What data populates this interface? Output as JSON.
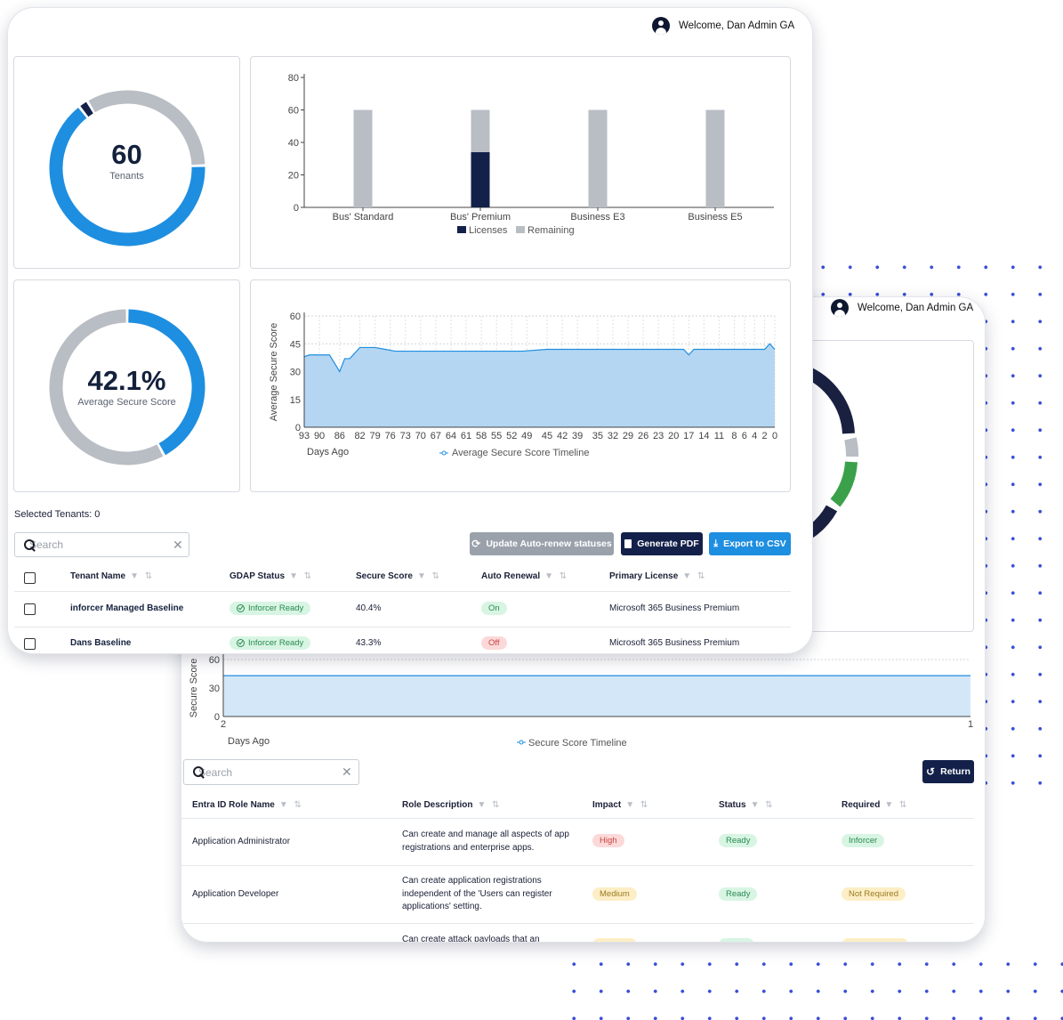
{
  "welcome_text": "Welcome, Dan Admin GA",
  "front": {
    "tenants": {
      "value": "60",
      "label": "Tenants"
    },
    "licenses_chart": {
      "categories": [
        "Bus' Standard",
        "Bus' Premium",
        "Business E3",
        "Business E5"
      ],
      "legend": [
        "Licenses",
        "Remaining"
      ]
    },
    "secure_score": {
      "value": "42.1%",
      "label": "Average Secure Score"
    },
    "timeline_chart": {
      "ylabel": "Average Secure Score",
      "xlabel": "Days Ago",
      "legend": "Average Secure Score Timeline"
    },
    "selected_tenants": "Selected Tenants: 0",
    "search_placeholder": "Search",
    "buttons": {
      "update": "Update Auto-renew statuses",
      "pdf": "Generate PDF",
      "csv": "Export to CSV"
    },
    "columns": [
      "Tenant Name",
      "GDAP Status",
      "Secure Score",
      "Auto Renewal",
      "Primary License"
    ],
    "rows": [
      {
        "name": "inforcer Managed Baseline",
        "gdap": "Inforcer Ready",
        "score": "40.4%",
        "renewal": "On",
        "license": "Microsoft 365 Business Premium"
      },
      {
        "name": "Dans Baseline",
        "gdap": "Inforcer Ready",
        "score": "43.3%",
        "renewal": "Off",
        "license": "Microsoft 365 Business Premium"
      }
    ]
  },
  "back": {
    "timeline_chart": {
      "ylabel": "Secure Score",
      "xlabel": "Days Ago",
      "legend": "Secure Score Timeline"
    },
    "search_placeholder": "Search",
    "return_button": "Return",
    "columns": [
      "Entra ID Role Name",
      "Role Description",
      "Impact",
      "Status",
      "Required"
    ],
    "rows": [
      {
        "role": "Application Administrator",
        "description": "Can create and manage all aspects of app registrations and enterprise apps.",
        "impact": "High",
        "status": "Ready",
        "required": "Inforcer"
      },
      {
        "role": "Application Developer",
        "description": "Can create application registrations independent of the 'Users can register applications' setting.",
        "impact": "Medium",
        "status": "Ready",
        "required": "Not Required"
      },
      {
        "role": "",
        "description": "Can create attack payloads that an",
        "impact": "",
        "status": "",
        "required": ""
      }
    ]
  },
  "chart_data": [
    {
      "type": "bar",
      "stacked": true,
      "categories": [
        "Bus' Standard",
        "Bus' Premium",
        "Business E3",
        "Business E5"
      ],
      "series": [
        {
          "name": "Licenses",
          "values": [
            0,
            34,
            0,
            0
          ],
          "color": "#13214a"
        },
        {
          "name": "Remaining",
          "values": [
            60,
            26,
            60,
            60
          ],
          "color": "#b9bdc4"
        }
      ],
      "ylim": [
        0,
        80
      ],
      "yticks": [
        0,
        20,
        40,
        60,
        80
      ],
      "legend": "bottom"
    },
    {
      "type": "area",
      "title": "",
      "xlabel": "Days Ago",
      "ylabel": "Average Secure Score",
      "ylim": [
        0,
        60
      ],
      "yticks": [
        0,
        15,
        30,
        45,
        60
      ],
      "xticks": [
        "93",
        "90",
        "86",
        "82",
        "79",
        "76",
        "73",
        "70",
        "67",
        "64",
        "61",
        "58",
        "55",
        "52",
        "49",
        "45",
        "42",
        "39",
        "35",
        "32",
        "29",
        "26",
        "23",
        "20",
        "17",
        "14",
        "11",
        "8",
        "6",
        "4",
        "2",
        "0"
      ],
      "series": [
        {
          "name": "Average Secure Score Timeline",
          "x": [
            93,
            92,
            90,
            88,
            86,
            85,
            84,
            82,
            81,
            79,
            77,
            75,
            73,
            70,
            65,
            60,
            55,
            50,
            45,
            40,
            35,
            30,
            25,
            20,
            18,
            17,
            16,
            14,
            10,
            5,
            2,
            1,
            0
          ],
          "y": [
            38,
            39,
            39,
            39,
            30,
            37,
            37,
            43,
            43,
            43,
            42,
            41,
            41,
            41,
            41,
            41,
            41,
            41,
            42,
            42,
            42,
            42,
            42,
            42,
            42,
            39,
            42,
            42,
            42,
            42,
            42,
            45,
            42
          ],
          "color": "#1e8ee0"
        }
      ],
      "legend": "bottom"
    },
    {
      "type": "area",
      "xlabel": "Days Ago",
      "ylabel": "Secure Score",
      "ylim": [
        0,
        60
      ],
      "yticks": [
        0,
        30,
        60
      ],
      "xticks": [
        "2",
        "1"
      ],
      "series": [
        {
          "name": "Secure Score Timeline",
          "x": [
            2,
            1
          ],
          "y": [
            43,
            43
          ],
          "color": "#1e8ee0"
        }
      ],
      "legend": "bottom"
    },
    {
      "type": "pie",
      "donut": true,
      "center_label": "60",
      "center_sublabel": "Tenants",
      "values": [
        65,
        2,
        33
      ],
      "colors": [
        "#1e8ee0",
        "#13214a",
        "#b9bdc4"
      ]
    },
    {
      "type": "pie",
      "donut": true,
      "center_label": "42.1%",
      "center_sublabel": "Average Secure Score",
      "values": [
        42.1,
        57.9
      ],
      "colors": [
        "#1e8ee0",
        "#b9bdc4"
      ]
    }
  ]
}
